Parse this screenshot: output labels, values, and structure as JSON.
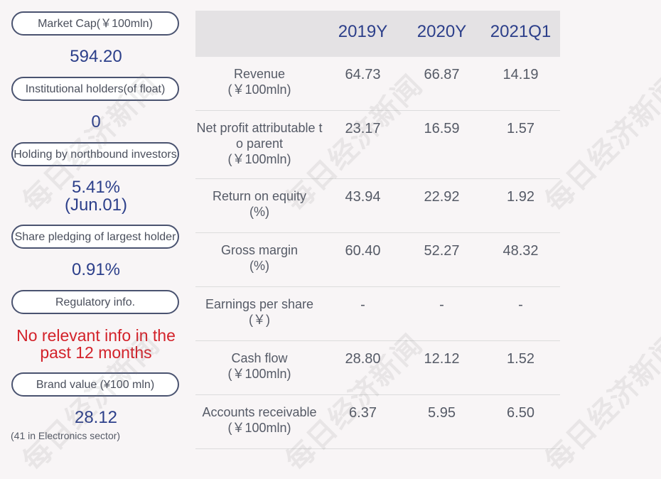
{
  "left": {
    "market_cap_label": "Market Cap(￥100mln)",
    "market_cap_value": "594.20",
    "inst_holders_label": "Institutional holders(of float)",
    "inst_holders_value": "0",
    "northbound_label": "Holding by northbound investors",
    "northbound_value": "5.41%",
    "northbound_date": "(Jun.01)",
    "pledging_label": "Share pledging of largest holder",
    "pledging_value": "0.91%",
    "regulatory_label": "Regulatory info.",
    "regulatory_value_line1": "No relevant info in the",
    "regulatory_value_line2": "past 12 months",
    "brand_label": "Brand value (¥100 mln)",
    "brand_value": "28.12",
    "brand_note": "(41 in Electronics sector)"
  },
  "table": {
    "headers": [
      "2019Y",
      "2020Y",
      "2021Q1"
    ],
    "rows": [
      {
        "label": "Revenue",
        "unit": "(￥100mln)",
        "values": [
          "64.73",
          "66.87",
          "14.19"
        ]
      },
      {
        "label": "Net profit attributable to parent",
        "unit": "(￥100mln)",
        "values": [
          "23.17",
          "16.59",
          "1.57"
        ]
      },
      {
        "label": "Return on equity",
        "unit": "(%)",
        "values": [
          "43.94",
          "22.92",
          "1.92"
        ]
      },
      {
        "label": "Gross margin",
        "unit": "(%)",
        "values": [
          "60.40",
          "52.27",
          "48.32"
        ]
      },
      {
        "label": "Earnings per share",
        "unit": "(￥)",
        "values": [
          "-",
          "-",
          "-"
        ]
      },
      {
        "label": "Cash flow",
        "unit": "(￥100mln)",
        "values": [
          "28.80",
          "12.12",
          "1.52"
        ]
      },
      {
        "label": "Accounts receivable",
        "unit": "(￥100mln)",
        "values": [
          "6.37",
          "5.95",
          "6.50"
        ]
      }
    ]
  },
  "watermark": "每日经济新闻"
}
